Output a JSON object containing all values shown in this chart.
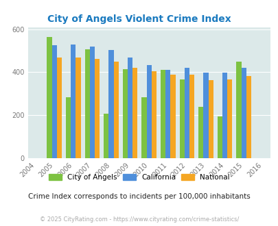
{
  "title": "City of Angels Violent Crime Index",
  "years": [
    2005,
    2006,
    2007,
    2008,
    2009,
    2010,
    2011,
    2012,
    2013,
    2014,
    2015
  ],
  "city_of_angels": [
    563,
    283,
    507,
    207,
    415,
    283,
    410,
    365,
    238,
    193,
    450
  ],
  "california": [
    525,
    530,
    518,
    505,
    470,
    435,
    410,
    422,
    398,
    398,
    420
  ],
  "national": [
    468,
    470,
    463,
    448,
    422,
    404,
    388,
    390,
    363,
    368,
    382
  ],
  "city_color": "#7dc242",
  "california_color": "#4f8fdb",
  "national_color": "#f5a623",
  "bg_color": "#dce9e9",
  "title_color": "#1a7abf",
  "subtitle": "Crime Index corresponds to incidents per 100,000 inhabitants",
  "footer": "© 2025 CityRating.com - https://www.cityrating.com/crime-statistics/",
  "ylim": [
    0,
    610
  ],
  "yticks": [
    0,
    200,
    400,
    600
  ],
  "bar_width": 0.26
}
